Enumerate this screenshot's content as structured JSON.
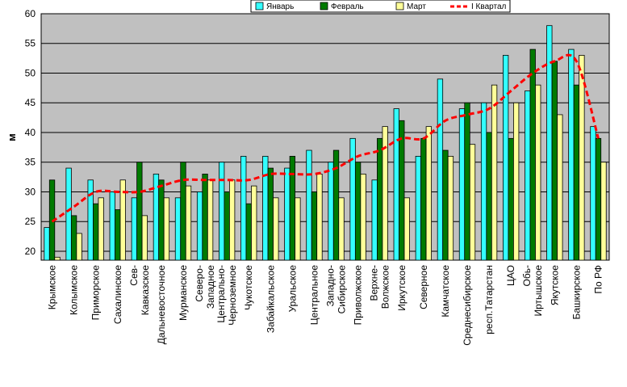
{
  "chart_data": {
    "type": "bar",
    "ylabel": "м",
    "ylim": [
      18.5,
      60
    ],
    "yticks": [
      20,
      25,
      30,
      35,
      40,
      45,
      50,
      55,
      60
    ],
    "grid": "horizontal",
    "legend_position": "top-right",
    "categories": [
      "Крымское",
      "Колымское",
      "Приморское",
      "Сахалинское",
      "Сев-Кавказское",
      "Дальневосточное",
      "Мурманское",
      "Северо-Западное",
      "Центрально-Черноземное",
      "Чукотское",
      "Забайкальское",
      "Уральское",
      "Центральное",
      "Западно-Сибирское",
      "Приволжское",
      "Верхне-Волжское",
      "Иркутское",
      "Северное",
      "Камчатское",
      "Среднесибирское",
      "респ.Татарстан",
      "ЦАО",
      "Обь-Иртышское",
      "Якутское",
      "Башкирское",
      "По РФ"
    ],
    "category_label_lines": [
      [
        "Крымское"
      ],
      [
        "Колымское"
      ],
      [
        "Приморское"
      ],
      [
        "Сахалинское"
      ],
      [
        "Сев-",
        "Кавказское"
      ],
      [
        "Дальневосточное"
      ],
      [
        "Мурманское"
      ],
      [
        "Северо-",
        "Западное"
      ],
      [
        "Центрально-",
        "Черноземное"
      ],
      [
        "Чукотское"
      ],
      [
        "Забайкальское"
      ],
      [
        "Уральское"
      ],
      [
        "Центральное"
      ],
      [
        "Западно-",
        "Сибирское"
      ],
      [
        "Приволжское"
      ],
      [
        "Верхне-",
        "Волжское"
      ],
      [
        "Иркутское"
      ],
      [
        "Северное"
      ],
      [
        "Камчатское"
      ],
      [
        "Среднесибирское"
      ],
      [
        "респ.Татарстан"
      ],
      [
        "ЦАО"
      ],
      [
        "Обь-",
        "Иртышское"
      ],
      [
        "Якутское"
      ],
      [
        "Башкирское"
      ],
      [
        "По РФ"
      ]
    ],
    "series": [
      {
        "name": "Январь",
        "kind": "bar",
        "color": "#33ffff",
        "values": [
          24,
          34,
          32,
          30,
          29,
          33,
          29,
          30,
          35,
          36,
          36,
          34,
          37,
          35,
          39,
          32,
          44,
          36,
          49,
          44,
          45,
          53,
          47,
          58,
          54,
          41
        ]
      },
      {
        "name": "Февраль",
        "kind": "bar",
        "color": "#007a00",
        "values": [
          32,
          26,
          28,
          27,
          35,
          32,
          35,
          33,
          30,
          28,
          34,
          36,
          30,
          37,
          35,
          39,
          42,
          39,
          37,
          45,
          40,
          39,
          54,
          52,
          48,
          39
        ]
      },
      {
        "name": "Март",
        "kind": "bar",
        "color": "#ffff99",
        "values": [
          19,
          23,
          29,
          32,
          26,
          29,
          31,
          32,
          32,
          31,
          29,
          29,
          33,
          29,
          33,
          41,
          29,
          41,
          36,
          38,
          48,
          45,
          48,
          43,
          53,
          35
        ]
      },
      {
        "name": "I Квартал",
        "kind": "line",
        "color": "#ff0000",
        "values": [
          25,
          27.5,
          30,
          30,
          30,
          31,
          32,
          32,
          32,
          32,
          33,
          33,
          33,
          34,
          36,
          37,
          39,
          39,
          42,
          43,
          44,
          47,
          50,
          52,
          52,
          39
        ]
      }
    ]
  }
}
